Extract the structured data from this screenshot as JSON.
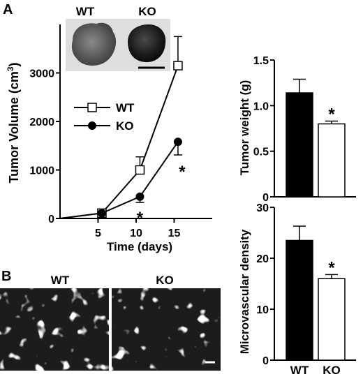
{
  "figure": {
    "panel_a_label": "A",
    "panel_b_label": "B",
    "photo_labels": [
      "WT",
      "KO"
    ],
    "micrograph_labels": [
      "WT",
      "KO"
    ],
    "significance_marker": "*",
    "colors": {
      "wt_marker": "#ffffff",
      "ko_marker": "#000000",
      "wt_bar": "#000000",
      "ko_bar": "#ffffff"
    }
  },
  "chart_data": [
    {
      "type": "line",
      "title": "",
      "xlabel": "Time (days)",
      "ylabel": "Tumor Volume (cm3)",
      "ylabel_base": "Tumor Volume (cm",
      "ylabel_sup": "3",
      "ylabel_close": ")",
      "xlim": [
        0,
        20
      ],
      "ylim": [
        0,
        4000
      ],
      "xticks": [
        5,
        10,
        15
      ],
      "yticks": [
        0,
        1000,
        2000,
        3000
      ],
      "legend_position": "middle-left",
      "series": [
        {
          "name": "WT",
          "marker": "open-square",
          "x": [
            0,
            5.5,
            10.5,
            15.5
          ],
          "y": [
            0,
            110,
            1000,
            3150
          ],
          "error_upper": [
            0,
            0,
            270,
            600
          ]
        },
        {
          "name": "KO",
          "marker": "filled-circle",
          "x": [
            0,
            5.5,
            10.5,
            15.5
          ],
          "y": [
            0,
            110,
            450,
            1580
          ],
          "error_lower": [
            0,
            0,
            120,
            270
          ]
        }
      ],
      "significant": [
        10.5,
        15.5
      ]
    },
    {
      "type": "bar",
      "title": "",
      "xlabel": "",
      "ylabel": "Tumor weight (g)",
      "ylim": [
        0,
        1.5
      ],
      "yticks": [
        "0",
        "0.5",
        "1.0",
        "1.5"
      ],
      "ytick_values": [
        0,
        0.5,
        1.0,
        1.5
      ],
      "categories": [
        "WT",
        "KO"
      ],
      "values": [
        1.14,
        0.8
      ],
      "errors": [
        0.15,
        0.03
      ],
      "significant": [
        "KO"
      ]
    },
    {
      "type": "bar",
      "title": "",
      "xlabel": "",
      "ylabel": "Microvascular density",
      "ylim": [
        0,
        30
      ],
      "yticks": [
        "0",
        "10",
        "20",
        "30"
      ],
      "ytick_values": [
        0,
        10,
        20,
        30
      ],
      "categories": [
        "WT",
        "KO"
      ],
      "values": [
        23.5,
        16
      ],
      "errors": [
        2.8,
        0.8
      ],
      "significant": [
        "KO"
      ]
    }
  ]
}
